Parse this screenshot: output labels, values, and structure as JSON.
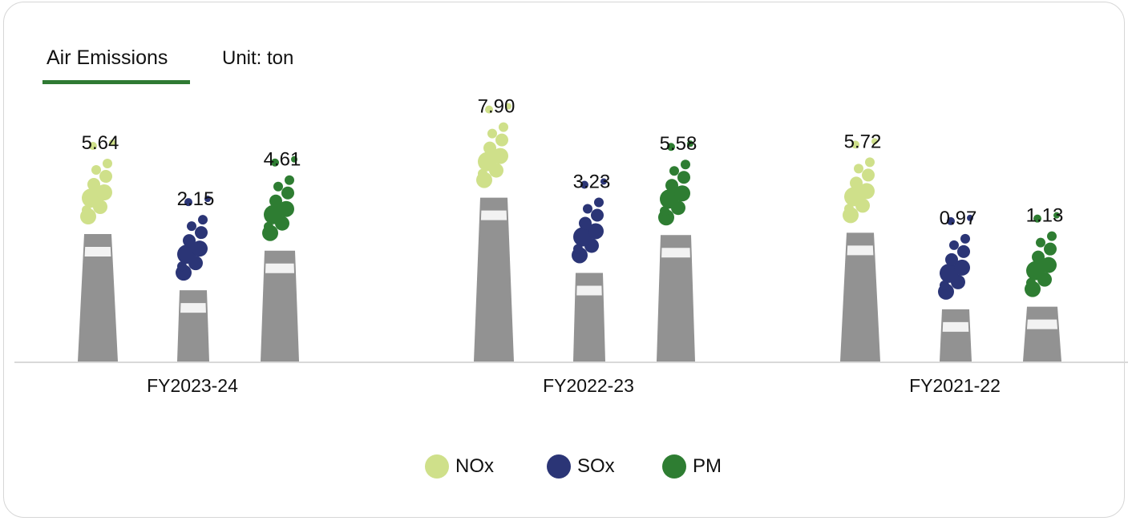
{
  "header": {
    "title": "Air Emissions",
    "unit": "Unit: ton"
  },
  "colors": {
    "NOx": "#cfe08a",
    "SOx": "#2b3576",
    "PM": "#2e7d32",
    "stack": "#929292",
    "band": "#f2f2f2",
    "axis": "#d9d9d9",
    "accent": "#2f7a33"
  },
  "legend": [
    {
      "label": "NOx",
      "color": "#cfe08a"
    },
    {
      "label": "SOx",
      "color": "#2b3576"
    },
    {
      "label": "PM",
      "color": "#2e7d32"
    }
  ],
  "chart_data": {
    "type": "bar",
    "title": "Air Emissions",
    "unit": "ton",
    "categories": [
      "FY2023-24",
      "FY2022-23",
      "FY2021-22"
    ],
    "series": [
      {
        "name": "NOx",
        "values": [
          5.64,
          7.9,
          5.72
        ],
        "labels": [
          "5.64",
          "7.90",
          "5.72"
        ]
      },
      {
        "name": "SOx",
        "values": [
          2.15,
          3.23,
          0.97
        ],
        "labels": [
          "2.15",
          "3.23",
          "0.97"
        ]
      },
      {
        "name": "PM",
        "values": [
          4.61,
          5.58,
          1.13
        ],
        "labels": [
          "4.61",
          "5.58",
          "1.13"
        ]
      }
    ],
    "legend_position": "bottom",
    "grid": false
  }
}
